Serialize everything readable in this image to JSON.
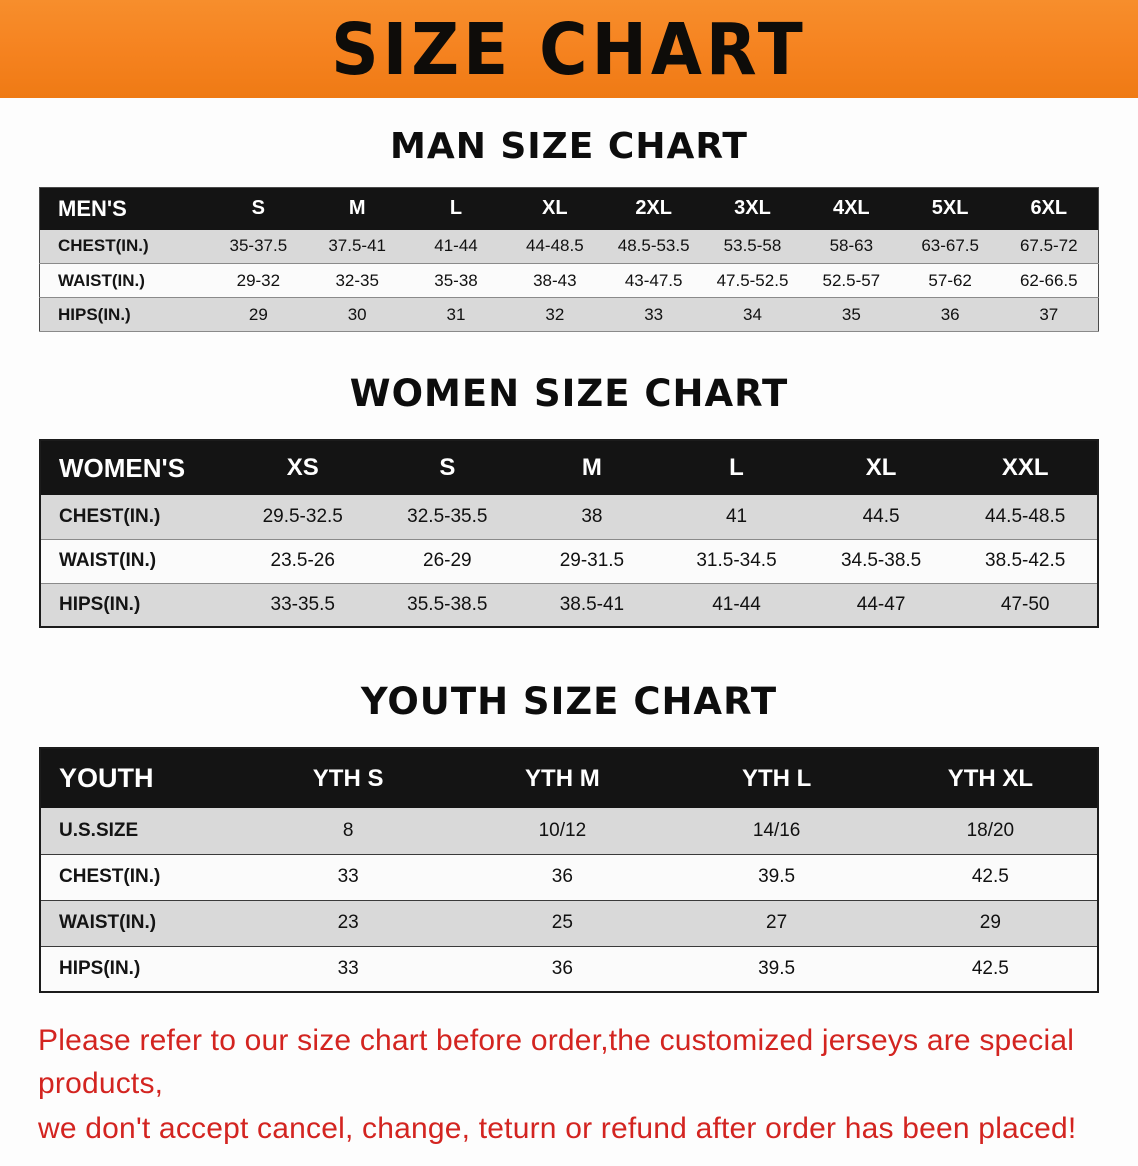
{
  "banner": {
    "title": "SIZE CHART"
  },
  "colors": {
    "banner_bg": "#f5821f",
    "table_header_bg": "#141414",
    "alt_row_bg": "#d9d9d9",
    "note_red": "#d32420"
  },
  "tables": [
    {
      "id": "men",
      "heading": "MAN SIZE CHART",
      "header": [
        "MEN'S",
        "S",
        "M",
        "L",
        "XL",
        "2XL",
        "3XL",
        "4XL",
        "5XL",
        "6XL"
      ],
      "rows": [
        [
          "CHEST(IN.)",
          "35-37.5",
          "37.5-41",
          "41-44",
          "44-48.5",
          "48.5-53.5",
          "53.5-58",
          "58-63",
          "63-67.5",
          "67.5-72"
        ],
        [
          "WAIST(IN.)",
          "29-32",
          "32-35",
          "35-38",
          "38-43",
          "43-47.5",
          "47.5-52.5",
          "52.5-57",
          "57-62",
          "62-66.5"
        ],
        [
          "HIPS(IN.)",
          "29",
          "30",
          "31",
          "32",
          "33",
          "34",
          "35",
          "36",
          "37"
        ]
      ]
    },
    {
      "id": "women",
      "heading": "WOMEN SIZE CHART",
      "header": [
        "WOMEN'S",
        "XS",
        "S",
        "M",
        "L",
        "XL",
        "XXL"
      ],
      "rows": [
        [
          "CHEST(IN.)",
          "29.5-32.5",
          "32.5-35.5",
          "38",
          "41",
          "44.5",
          "44.5-48.5"
        ],
        [
          "WAIST(IN.)",
          "23.5-26",
          "26-29",
          "29-31.5",
          "31.5-34.5",
          "34.5-38.5",
          "38.5-42.5"
        ],
        [
          "HIPS(IN.)",
          "33-35.5",
          "35.5-38.5",
          "38.5-41",
          "41-44",
          "44-47",
          "47-50"
        ]
      ]
    },
    {
      "id": "youth",
      "heading": "YOUTH SIZE CHART",
      "header": [
        "YOUTH",
        "YTH S",
        "YTH M",
        "YTH L",
        "YTH XL"
      ],
      "rows": [
        [
          "U.S.SIZE",
          "8",
          "10/12",
          "14/16",
          "18/20"
        ],
        [
          "CHEST(IN.)",
          "33",
          "36",
          "39.5",
          "42.5"
        ],
        [
          "WAIST(IN.)",
          "23",
          "25",
          "27",
          "29"
        ],
        [
          "HIPS(IN.)",
          "33",
          "36",
          "39.5",
          "42.5"
        ]
      ]
    }
  ],
  "note": {
    "line1": "Please refer to our size chart before order,the customized jerseys are special products,",
    "line2": "we don't accept cancel, change, teturn or refund after order has been placed!"
  }
}
